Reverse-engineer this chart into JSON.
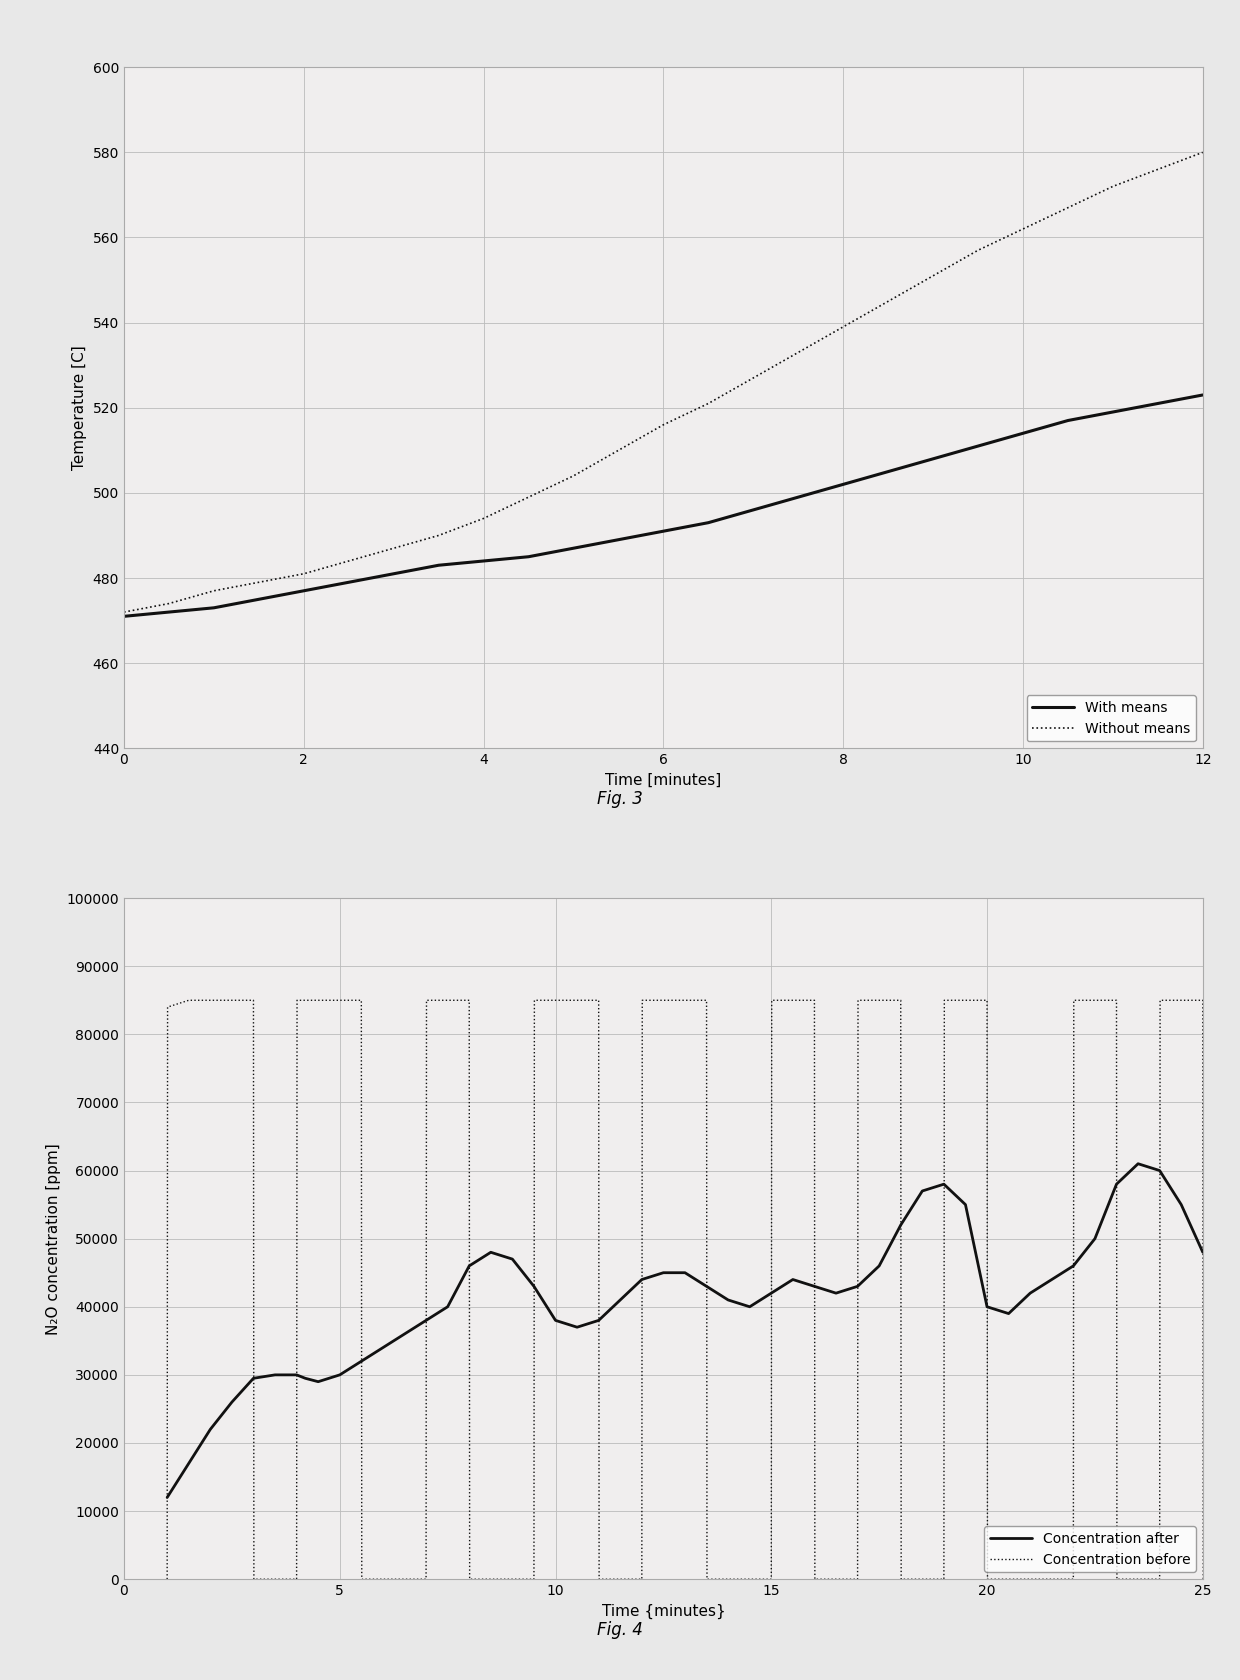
{
  "fig3": {
    "title": "Fig. 3",
    "xlabel": "Time [minutes]",
    "ylabel": "Temperature [C]",
    "xlim": [
      0,
      12
    ],
    "ylim": [
      440,
      600
    ],
    "yticks": [
      440,
      460,
      480,
      500,
      520,
      540,
      560,
      580,
      600
    ],
    "xticks": [
      0,
      2,
      4,
      6,
      8,
      10,
      12
    ],
    "with_means_x": [
      0,
      0.5,
      1,
      1.5,
      2,
      2.5,
      3,
      3.5,
      4,
      4.5,
      5,
      5.5,
      6,
      6.5,
      7,
      7.5,
      8,
      8.5,
      9,
      9.5,
      10,
      10.5,
      11,
      11.5,
      12
    ],
    "with_means_y": [
      471,
      472,
      473,
      475,
      477,
      479,
      481,
      483,
      484,
      485,
      487,
      489,
      491,
      493,
      496,
      499,
      502,
      505,
      508,
      511,
      514,
      517,
      519,
      521,
      523
    ],
    "without_means_x": [
      0,
      0.5,
      1,
      1.5,
      2,
      2.5,
      3,
      3.5,
      4,
      4.5,
      5,
      5.5,
      6,
      6.5,
      7,
      7.5,
      8,
      8.5,
      9,
      9.5,
      10,
      10.5,
      11,
      11.5,
      12
    ],
    "without_means_y": [
      472,
      474,
      477,
      479,
      481,
      484,
      487,
      490,
      494,
      499,
      504,
      510,
      516,
      521,
      527,
      533,
      539,
      545,
      551,
      557,
      562,
      567,
      572,
      576,
      580
    ],
    "legend_with": "With means",
    "legend_without": "Without means"
  },
  "fig4": {
    "title": "Fig. 4",
    "xlabel": "Time {minutes}",
    "ylabel": "N₂O concentration [ppm]",
    "xlim": [
      0,
      25
    ],
    "ylim": [
      0,
      100000
    ],
    "yticks": [
      0,
      10000,
      20000,
      30000,
      40000,
      50000,
      60000,
      70000,
      80000,
      90000,
      100000
    ],
    "xticks": [
      0,
      5,
      10,
      15,
      20,
      25
    ],
    "after_x": [
      1,
      1.5,
      2,
      2.5,
      3,
      3.5,
      4,
      4.2,
      4.5,
      5,
      5.5,
      6,
      6.5,
      7,
      7.5,
      8,
      8.5,
      9,
      9.5,
      10,
      10.5,
      11,
      11.5,
      12,
      12.5,
      13,
      13.5,
      14,
      14.5,
      15,
      15.5,
      16,
      16.5,
      17,
      17.5,
      18,
      18.5,
      19,
      19.5,
      20,
      20.5,
      21,
      21.5,
      22,
      22.5,
      23,
      23.5,
      24,
      24.5,
      25
    ],
    "after_y": [
      12000,
      17000,
      22000,
      26000,
      29500,
      30000,
      30000,
      29500,
      29000,
      30000,
      32000,
      34000,
      36000,
      38000,
      40000,
      46000,
      48000,
      47000,
      43000,
      38000,
      37000,
      38000,
      41000,
      44000,
      45000,
      45000,
      43000,
      41000,
      40000,
      42000,
      44000,
      43000,
      42000,
      43000,
      46000,
      52000,
      57000,
      58000,
      55000,
      40000,
      39000,
      42000,
      44000,
      46000,
      50000,
      58000,
      61000,
      60000,
      55000,
      48000
    ],
    "before_x": [
      1,
      1.01,
      1.5,
      3.0,
      3.01,
      3.5,
      4.0,
      4.01,
      4.5,
      5.5,
      5.51,
      6.0,
      6.5,
      7.0,
      7.01,
      7.5,
      8.0,
      8.01,
      8.5,
      9.5,
      9.51,
      10.0,
      10.5,
      11.0,
      11.01,
      11.5,
      12.0,
      12.01,
      12.5,
      13.5,
      13.51,
      14.0,
      14.5,
      15.0,
      15.01,
      15.5,
      16.0,
      16.01,
      16.5,
      17.0,
      17.01,
      17.5,
      18.0,
      18.01,
      18.5,
      19.0,
      19.01,
      20.0,
      20.01,
      20.5,
      21.0,
      21.5,
      22.0,
      22.01,
      22.5,
      23.0,
      23.01,
      23.5,
      24.0,
      24.01,
      24.5,
      25.0,
      25.01
    ],
    "before_y": [
      0,
      84000,
      85000,
      85000,
      0,
      0,
      0,
      85000,
      85000,
      85000,
      0,
      0,
      0,
      0,
      85000,
      85000,
      85000,
      0,
      0,
      0,
      85000,
      85000,
      85000,
      85000,
      0,
      0,
      0,
      85000,
      85000,
      85000,
      0,
      0,
      0,
      0,
      85000,
      85000,
      85000,
      0,
      0,
      0,
      85000,
      85000,
      85000,
      0,
      0,
      0,
      85000,
      85000,
      0,
      0,
      0,
      0,
      0,
      85000,
      85000,
      85000,
      0,
      0,
      0,
      85000,
      85000,
      85000,
      0
    ],
    "legend_after": "Concentration after",
    "legend_before": "Concentration before"
  },
  "page_bg": "#e8e8e8",
  "plot_bg_color": "#f0eeee",
  "line_color": "#111111",
  "grid_color": "#bbbbbb",
  "fig_label_fontsize": 12,
  "border_color": "#aaaaaa"
}
